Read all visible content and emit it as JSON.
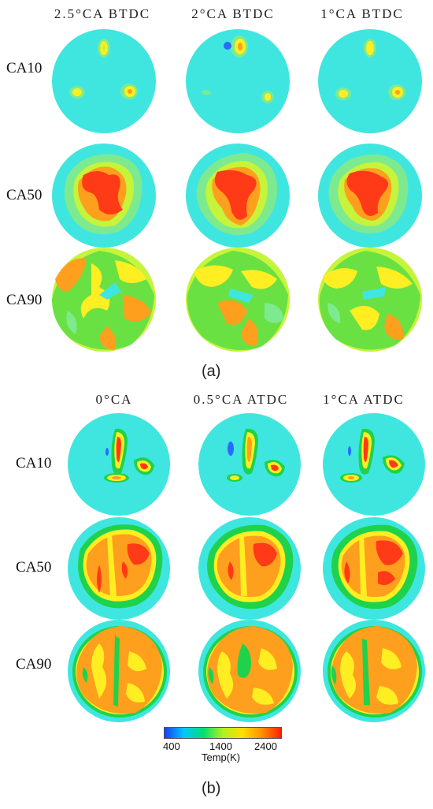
{
  "panel_a": {
    "label": "(a)",
    "columns": [
      "2.5°CA BTDC",
      "2°CA BTDC",
      "1°CA BTDC"
    ],
    "rows": [
      "CA10",
      "CA50",
      "CA90"
    ]
  },
  "panel_b": {
    "label": "(b)",
    "columns": [
      "0°CA",
      "0.5°CA ATDC",
      "1°CA ATDC"
    ],
    "rows": [
      "CA10",
      "CA50",
      "CA90"
    ]
  },
  "colorbar": {
    "title": "Temp(K)",
    "ticks": [
      "400",
      "1400",
      "2400"
    ],
    "colors": [
      "#1a3cff",
      "#00c8ff",
      "#00e070",
      "#b0f020",
      "#ffe000",
      "#ff9000",
      "#ff2000"
    ]
  },
  "palette": {
    "background": "#3fe6e0",
    "green_light": "#7dea8f",
    "green": "#1fd24b",
    "yellow_green": "#c6f43a",
    "yellow": "#ffee21",
    "orange": "#ff9f1e",
    "red": "#ff3a16",
    "blue": "#2a6bff"
  }
}
